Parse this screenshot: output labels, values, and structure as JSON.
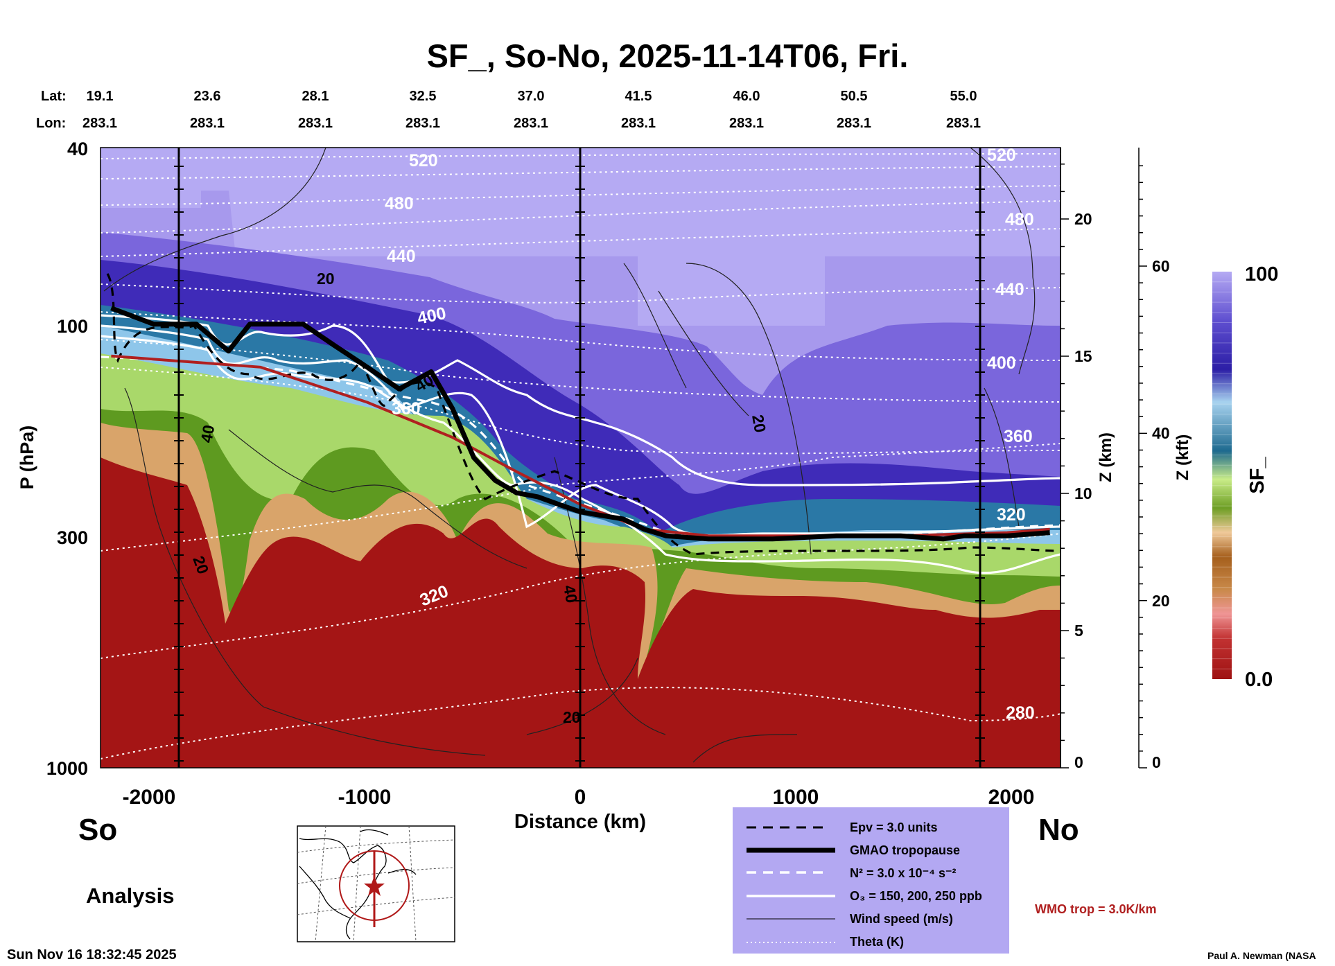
{
  "chart_data": {
    "type": "heatmap",
    "title": "SF_, So-No, 2025-11-14T06, Fri.",
    "xlabel": "Distance (km)",
    "ylabel": "P (hPa)",
    "y2label": "Z (km)",
    "y3label": "Z (kft)",
    "colorbar_label": "SF_",
    "colorbar_range": [
      "0.0",
      "100"
    ],
    "xlim": [
      -2250,
      2250
    ],
    "ylim": [
      1000,
      40
    ],
    "x_ticks": [
      "-2000",
      "-1000",
      "0",
      "1000",
      "2000"
    ],
    "y_ticks": [
      "40",
      "100",
      "300",
      "1000"
    ],
    "z_km_ticks": [
      "0",
      "5",
      "10",
      "15",
      "20"
    ],
    "z_kft_ticks": [
      "0",
      "20",
      "40",
      "60"
    ],
    "lat_label": "Lat:",
    "lon_label": "Lon:",
    "lat_ticks": [
      "19.1",
      "23.6",
      "28.1",
      "32.5",
      "37.0",
      "41.5",
      "46.0",
      "50.5",
      "55.0"
    ],
    "lon_ticks": [
      "283.1",
      "283.1",
      "283.1",
      "283.1",
      "283.1",
      "283.1",
      "283.1",
      "283.1",
      "283.1"
    ],
    "theta_labels": [
      "520",
      "480",
      "440",
      "400",
      "360",
      "320",
      "520",
      "480",
      "440",
      "400",
      "360",
      "320",
      "280"
    ],
    "wind_labels": [
      "20",
      "40",
      "40",
      "20",
      "40",
      "20",
      "20"
    ],
    "gmao_tropopause": {
      "x": [
        -2200,
        -2000,
        -1800,
        -1650,
        -1550,
        -1400,
        -1300,
        -1150,
        -1000,
        -850,
        -700,
        -600,
        -500,
        -400,
        -300,
        -200,
        -100,
        0,
        100,
        200,
        300,
        400,
        600,
        900,
        1200,
        1500,
        1700,
        1800,
        2000,
        2200
      ],
      "p": [
        92,
        100,
        100,
        115,
        100,
        100,
        100,
        112,
        125,
        140,
        128,
        155,
        200,
        225,
        240,
        245,
        255,
        265,
        270,
        275,
        290,
        300,
        305,
        305,
        300,
        300,
        305,
        300,
        300,
        295
      ]
    },
    "wmo_tropopause": {
      "x": [
        -2200,
        -1500,
        -1000,
        -600,
        -300,
        0,
        300,
        600,
        1000,
        1500,
        2000,
        2200
      ],
      "p": [
        118,
        125,
        150,
        180,
        215,
        255,
        290,
        300,
        300,
        300,
        295,
        290
      ]
    },
    "legend": {
      "items": [
        {
          "label": "Epv = 3.0 units",
          "style": "dashed-black"
        },
        {
          "label": "GMAO tropopause",
          "style": "thick-black"
        },
        {
          "label": "N² = 3.0 x 10⁻⁴ s⁻²",
          "style": "dashed-white"
        },
        {
          "label": "O₃ = 150, 200, 250 ppb",
          "style": "solid-white"
        },
        {
          "label": "Wind speed (m/s)",
          "style": "thin-black"
        },
        {
          "label": "Theta (K)",
          "style": "dotted-white"
        }
      ],
      "background": "#b3a8f2"
    },
    "wmo_label": "WMO trop = 3.0K/km",
    "grid": false
  },
  "labels": {
    "so": "So",
    "no": "No",
    "analysis": "Analysis",
    "timestamp": "Sun Nov 16 18:32:45 2025",
    "credit": "Paul A. Newman (NASA"
  },
  "colors": {
    "strat_dark": "#3b26b0",
    "strat_light": "#b5aaf3",
    "trop": "#a41515",
    "wmo": "#b02020"
  }
}
